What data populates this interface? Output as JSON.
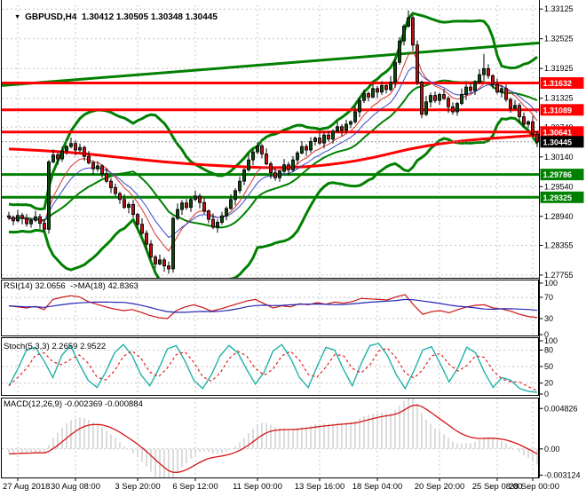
{
  "window": {
    "symbol": "GBPUSD,H4",
    "quote_line": "1.30412 1.30505 1.30348 1.30445",
    "menu_arrow": "▼"
  },
  "chart_data": {
    "type": "candlestick",
    "symbol": "GBPUSD",
    "timeframe": "H4",
    "x_labels": [
      "27 Aug 2018",
      "30 Aug 08:00",
      "3 Sep 20:00",
      "6 Sep 12:00",
      "11 Sep 00:00",
      "13 Sep 16:00",
      "18 Sep 04:00",
      "20 Sep 20:00",
      "25 Sep 08:00",
      "28 Sep 00:00"
    ],
    "x_label_indices": [
      2,
      15,
      29,
      42,
      56,
      70,
      83,
      97,
      110,
      118
    ],
    "price_grid": [
      "1.33125",
      "1.32525",
      "1.31925",
      "1.31325",
      "1.30740",
      "1.30140",
      "1.29540",
      "1.28940",
      "1.28355",
      "1.27755"
    ],
    "price_range": {
      "max": 1.332,
      "min": 1.277
    },
    "prehistory": [
      1.2915,
      1.2902,
      1.2888,
      1.2875,
      1.289,
      1.2905,
      1.2918,
      1.29,
      1.2882,
      1.287,
      1.2885,
      1.2898,
      1.291,
      1.2895,
      1.2878,
      1.2868,
      1.288,
      1.2895,
      1.2885,
      1.2895
    ],
    "opens_first": 1.2895,
    "closes": [
      1.2892,
      1.2885,
      1.2896,
      1.289,
      1.2879,
      1.2886,
      1.2893,
      1.288,
      1.2868,
      1.3004,
      1.3018,
      1.301,
      1.3026,
      1.3035,
      1.3041,
      1.3028,
      1.3033,
      1.3015,
      1.3002,
      1.299,
      1.2996,
      1.298,
      1.2965,
      1.2952,
      1.294,
      1.2928,
      1.2912,
      1.2918,
      1.2898,
      1.2878,
      1.286,
      1.2838,
      1.2812,
      1.2798,
      1.2806,
      1.2794,
      1.2788,
      1.289,
      1.2908,
      1.2921,
      1.2912,
      1.2928,
      1.2935,
      1.2922,
      1.2905,
      1.2888,
      1.2872,
      1.2882,
      1.2895,
      1.291,
      1.2928,
      1.2946,
      1.2965,
      1.2988,
      1.3008,
      1.3024,
      1.3036,
      1.302,
      1.3,
      1.2982,
      1.2972,
      1.2985,
      1.2998,
      1.2988,
      1.3008,
      1.3022,
      1.3035,
      1.3028,
      1.3045,
      1.3052,
      1.3042,
      1.3058,
      1.305,
      1.3066,
      1.3075,
      1.3068,
      1.308,
      1.3085,
      1.3105,
      1.3128,
      1.3142,
      1.3135,
      1.3152,
      1.3145,
      1.3158,
      1.315,
      1.3165,
      1.3205,
      1.3248,
      1.3278,
      1.3295,
      1.324,
      1.3165,
      1.31,
      1.3125,
      1.3138,
      1.3128,
      1.314,
      1.3132,
      1.3115,
      1.3105,
      1.3122,
      1.314,
      1.3155,
      1.3148,
      1.3165,
      1.318,
      1.3192,
      1.3178,
      1.316,
      1.3145,
      1.3152,
      1.313,
      1.3112,
      1.3118,
      1.3095,
      1.308,
      1.3085,
      1.306,
      1.30445
    ],
    "wick_pattern": [
      0.0008,
      0.0004,
      0.0011,
      0.0005,
      0.0009,
      0.0003,
      0.0012,
      0.0006
    ],
    "wick_overrides": {
      "36": {
        "low": 1.2778
      },
      "90": {
        "high": 1.331
      },
      "107": {
        "high": 1.3222
      }
    },
    "levels": {
      "resistance": [
        1.31632,
        1.31089,
        1.30641
      ],
      "support": [
        1.29786,
        1.29325
      ]
    },
    "current_price": 1.30445,
    "current_price_label": "1.30445",
    "trendline": {
      "p0": 1.3158,
      "p1": 1.3244
    },
    "slow_ma": [
      [
        0,
        1.303
      ],
      [
        10,
        1.3026
      ],
      [
        20,
        1.3018
      ],
      [
        30,
        1.3008
      ],
      [
        40,
        1.3
      ],
      [
        50,
        1.2995
      ],
      [
        58,
        1.2992
      ],
      [
        66,
        1.2993
      ],
      [
        74,
        1.3
      ],
      [
        82,
        1.3012
      ],
      [
        90,
        1.303
      ],
      [
        98,
        1.3042
      ],
      [
        106,
        1.305
      ],
      [
        113,
        1.3054
      ],
      [
        119,
        1.3058
      ]
    ],
    "bollinger": {
      "period": 20,
      "dev": 2.2
    },
    "emas": [
      {
        "period": 8,
        "color": "#d83030"
      },
      {
        "period": 13,
        "color": "#3848c8"
      }
    ],
    "rsi": {
      "label": "RSI(14) 32.0656  ->MA(18) 42.8363",
      "values": [
        54,
        52,
        50,
        53,
        47,
        66,
        70,
        73,
        71,
        62,
        57,
        52,
        48,
        45,
        47,
        42,
        36,
        32,
        30,
        45,
        52,
        56,
        51,
        44,
        48,
        53,
        58,
        63,
        66,
        58,
        50,
        54,
        52,
        58,
        56,
        60,
        57,
        61,
        59,
        62,
        68,
        67,
        66,
        65,
        71,
        75,
        55,
        38,
        43,
        45,
        41,
        47,
        52,
        55,
        56,
        50,
        48,
        44,
        38,
        34,
        32
      ],
      "ma_window": 9,
      "grid": [
        70,
        30
      ],
      "axis": [
        100,
        70,
        30,
        0
      ],
      "line_color": "#cc1414",
      "ma_color": "#2424b4"
    },
    "stoch": {
      "label": "Stoch(5,3,3) 2.2659 2.9522",
      "values": [
        15,
        45,
        80,
        85,
        60,
        30,
        70,
        88,
        55,
        25,
        12,
        40,
        75,
        90,
        70,
        35,
        15,
        45,
        82,
        88,
        60,
        25,
        10,
        35,
        70,
        88,
        75,
        45,
        18,
        40,
        78,
        90,
        65,
        30,
        12,
        50,
        85,
        80,
        45,
        15,
        55,
        88,
        92,
        70,
        35,
        10,
        42,
        80,
        86,
        55,
        22,
        48,
        85,
        75,
        40,
        12,
        30,
        25,
        10,
        5,
        3
      ],
      "signal_window": 3,
      "grid": [
        80,
        50,
        20
      ],
      "axis": [
        100,
        80,
        50,
        20,
        0
      ],
      "line_color": "#20b2aa",
      "signal_color": "#dd2020"
    },
    "macd": {
      "label": "MACD(12,26,9) -0.002369 -0.000884",
      "fast": 12,
      "slow": 26,
      "signal": 9,
      "axis_labels": [
        "0.004826",
        "0.00",
        "-0.003124"
      ],
      "axis_values": [
        0.004826,
        0,
        -0.003124
      ],
      "range": {
        "max": 0.0057,
        "min": -0.0033
      },
      "hist_color": "#b8b8b8",
      "signal_color": "#d41414"
    },
    "colors": {
      "bull": "#0a4a0a",
      "bear": "#c01010",
      "outline": "#000000",
      "grid": "#c6c6c6",
      "resistance": "#ff0000",
      "support": "#008000",
      "bollinger": "#008000",
      "trend": "#008000",
      "slow_ma": "#ff0000",
      "axis_text": "#000000",
      "box_res_bg": "#ff0000",
      "box_sup_bg": "#008000",
      "box_cur_bg": "#000000",
      "box_text": "#ffffff",
      "border": "#000000"
    }
  }
}
